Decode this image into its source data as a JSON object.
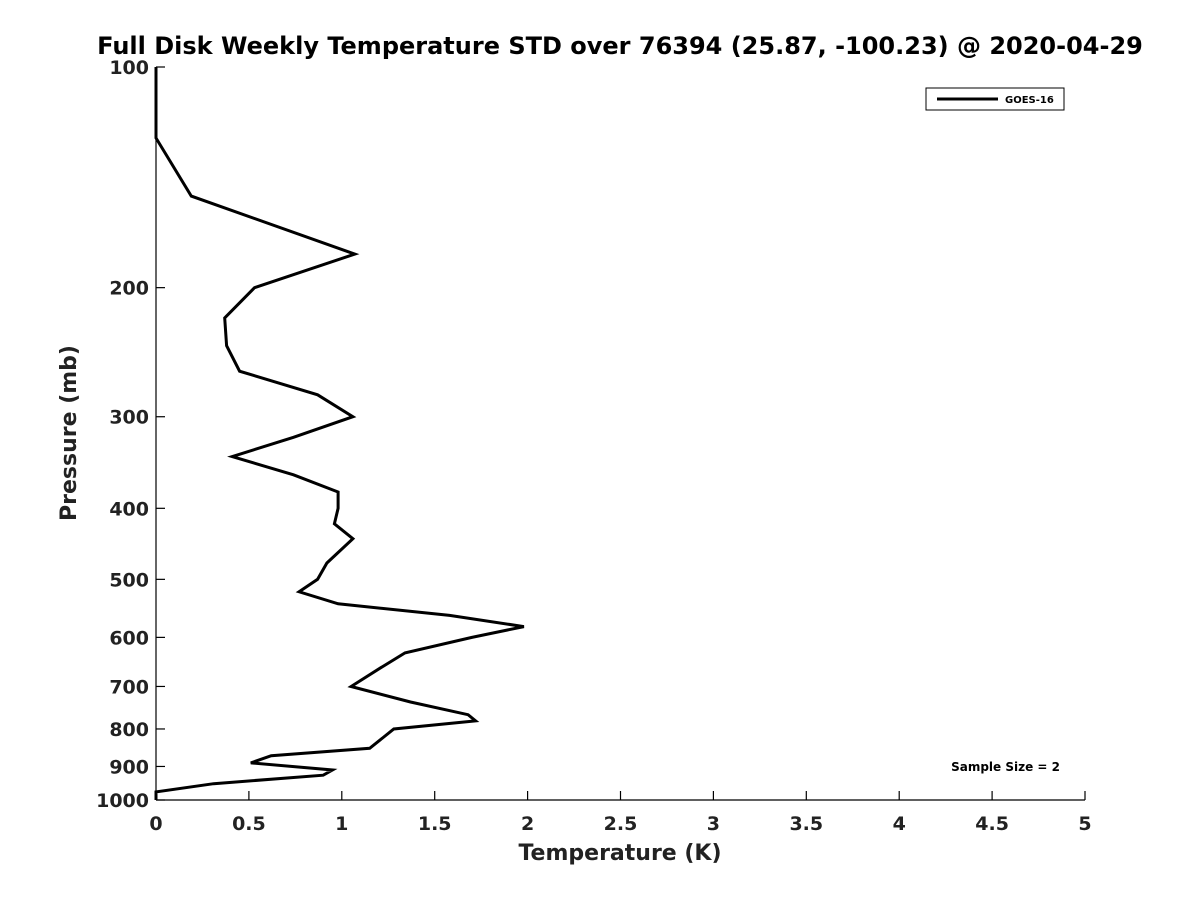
{
  "chart_data": {
    "type": "line",
    "title": "Full Disk Weekly Temperature STD over 76394 (25.87, -100.23) @ 2020-04-29",
    "xlabel": "Temperature (K)",
    "ylabel": "Pressure (mb)",
    "xlim": [
      0,
      5
    ],
    "ylim": [
      100,
      1000
    ],
    "y_scale": "log",
    "y_reversed": true,
    "grid": false,
    "x_ticks": [
      "0",
      "0.5",
      "1",
      "1.5",
      "2",
      "2.5",
      "3",
      "3.5",
      "4",
      "4.5",
      "5"
    ],
    "y_ticks": [
      "100",
      "200",
      "300",
      "400",
      "500",
      "600",
      "700",
      "800",
      "900",
      "1000"
    ],
    "legend_position": "top-right",
    "annotation": "Sample Size = 2",
    "series": [
      {
        "name": "GOES-16",
        "color": "#000000",
        "points": [
          {
            "x": 0.0,
            "p": 100
          },
          {
            "x": 0.0,
            "p": 125
          },
          {
            "x": 0.19,
            "p": 150
          },
          {
            "x": 1.07,
            "p": 180
          },
          {
            "x": 0.53,
            "p": 200
          },
          {
            "x": 0.37,
            "p": 220
          },
          {
            "x": 0.38,
            "p": 240
          },
          {
            "x": 0.45,
            "p": 260
          },
          {
            "x": 0.87,
            "p": 280
          },
          {
            "x": 1.06,
            "p": 300
          },
          {
            "x": 0.74,
            "p": 320
          },
          {
            "x": 0.41,
            "p": 340
          },
          {
            "x": 0.74,
            "p": 360
          },
          {
            "x": 0.98,
            "p": 380
          },
          {
            "x": 0.98,
            "p": 400
          },
          {
            "x": 0.96,
            "p": 420
          },
          {
            "x": 1.06,
            "p": 440
          },
          {
            "x": 0.92,
            "p": 475
          },
          {
            "x": 0.87,
            "p": 500
          },
          {
            "x": 0.77,
            "p": 520
          },
          {
            "x": 0.98,
            "p": 540
          },
          {
            "x": 1.58,
            "p": 560
          },
          {
            "x": 1.98,
            "p": 580
          },
          {
            "x": 1.7,
            "p": 600
          },
          {
            "x": 1.34,
            "p": 630
          },
          {
            "x": 1.21,
            "p": 660
          },
          {
            "x": 1.05,
            "p": 700
          },
          {
            "x": 1.37,
            "p": 735
          },
          {
            "x": 1.68,
            "p": 765
          },
          {
            "x": 1.72,
            "p": 780
          },
          {
            "x": 1.28,
            "p": 800
          },
          {
            "x": 1.15,
            "p": 850
          },
          {
            "x": 0.62,
            "p": 870
          },
          {
            "x": 0.51,
            "p": 890
          },
          {
            "x": 0.95,
            "p": 910
          },
          {
            "x": 0.9,
            "p": 925
          },
          {
            "x": 0.31,
            "p": 950
          },
          {
            "x": 0.0,
            "p": 975
          },
          {
            "x": 0.0,
            "p": 1000
          }
        ]
      }
    ]
  }
}
